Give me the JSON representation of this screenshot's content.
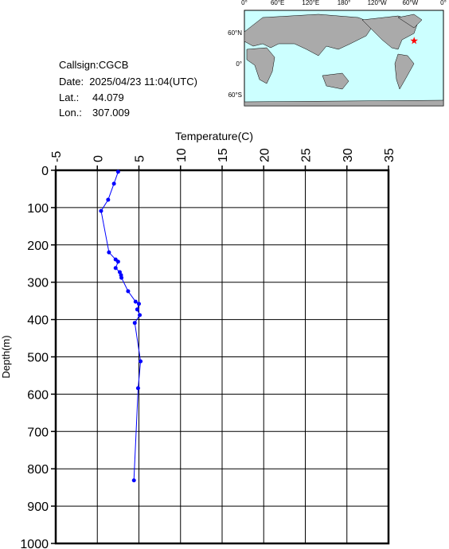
{
  "info": {
    "callsign": "Callsign:CGCB",
    "date": "Date:  2025/04/23 11:04(UTC)",
    "lat_label": "Lat.:",
    "lat": 44.079,
    "lon_label": "Lon.:",
    "lon": 307.009
  },
  "map": {
    "lon_labels": [
      "0°",
      "60°E",
      "120°E",
      "180°",
      "120°W",
      "60°W",
      "0°"
    ],
    "lat_labels": [
      "60°N",
      "0°",
      "60°S"
    ]
  },
  "chart_data": {
    "type": "line",
    "x_label": "Temperature(C)",
    "y_label": "Depth(m)",
    "xlim": [
      -5,
      35
    ],
    "xticks": [
      -5,
      0,
      5,
      10,
      15,
      20,
      25,
      30,
      35
    ],
    "ylim": [
      0,
      1000
    ],
    "yticks": [
      0,
      100,
      200,
      300,
      400,
      500,
      600,
      700,
      800,
      900,
      1000
    ],
    "inverted_y": true,
    "grid": true,
    "color": "#0000ff",
    "x": [
      2.5,
      2.0,
      1.3,
      0.45,
      1.4,
      2.2,
      2.5,
      2.2,
      2.7,
      2.85,
      2.9,
      3.7,
      4.6,
      5.0,
      4.8,
      5.1,
      4.5,
      5.2,
      4.9,
      4.4
    ],
    "values": [
      4,
      36,
      79,
      109,
      220,
      239,
      245,
      262,
      273,
      281,
      288,
      324,
      352,
      358,
      373,
      388,
      409,
      512,
      584,
      831
    ]
  }
}
